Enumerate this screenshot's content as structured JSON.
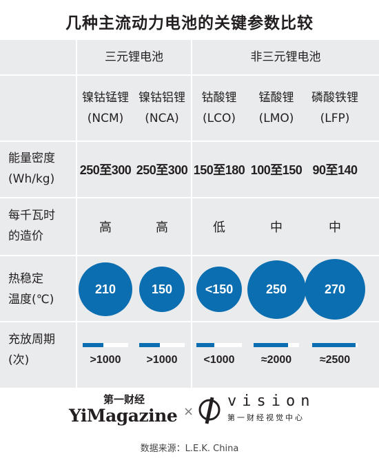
{
  "title": "几种主流动力电池的关键参数比较",
  "groups": {
    "ternary": "三元锂电池",
    "non_ternary": "非三元锂电池"
  },
  "row_labels": {
    "energy": [
      "能量密度",
      "(Wh/kg)"
    ],
    "cost": [
      "每千瓦时",
      "的造价"
    ],
    "temp": [
      "热稳定",
      "温度(℃)"
    ],
    "cycle": [
      "充放周期",
      "(次)"
    ]
  },
  "batteries": [
    {
      "name": "镍钴锰锂",
      "code": "(NCM)",
      "energy": "250至300",
      "cost": "高",
      "temp": "210",
      "temp_value": 210,
      "cycle": ">1000",
      "cycle_fill": 0.45
    },
    {
      "name": "镍钴铝锂",
      "code": "(NCA)",
      "energy": "250至300",
      "cost": "高",
      "temp": "150",
      "temp_value": 150,
      "cycle": ">1000",
      "cycle_fill": 0.45
    },
    {
      "name": "钴酸锂",
      "code": "(LCO)",
      "energy": "150至180",
      "cost": "低",
      "temp": "<150",
      "temp_value": 150,
      "cycle": "<1000",
      "cycle_fill": 0.4
    },
    {
      "name": "锰酸锂",
      "code": "(LMO)",
      "energy": "100至150",
      "cost": "中",
      "temp": "250",
      "temp_value": 250,
      "cycle": "≈2000",
      "cycle_fill": 0.75
    },
    {
      "name": "磷酸铁锂",
      "code": "(LFP)",
      "energy": "90至140",
      "cost": "中",
      "temp": "270",
      "temp_value": 270,
      "cycle": "≈2500",
      "cycle_fill": 0.95
    }
  ],
  "logos": {
    "yi_cn": "第一财经",
    "yi_en": "YiMagazine",
    "cross": "×",
    "vision": "vision",
    "vision_sub": "第一财经视觉中心"
  },
  "source": "数据来源：L.E.K. China",
  "colors": {
    "accent": "#0b6eb0",
    "table_bg": "#e9ebed",
    "text": "#231f20"
  }
}
